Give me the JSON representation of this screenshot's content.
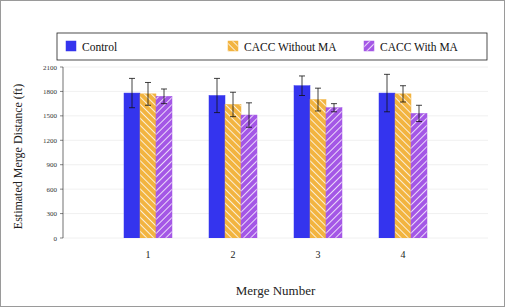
{
  "chart_data": {
    "type": "bar",
    "y_label": "Estimated Merge Distance (ft)",
    "x_label": "Merge Number",
    "categories": [
      "1",
      "2",
      "3",
      "4"
    ],
    "series": [
      {
        "name": "Control",
        "color": "#3434ee",
        "values": [
          1780,
          1750,
          1870,
          1780
        ],
        "errors": [
          180,
          210,
          120,
          230
        ]
      },
      {
        "name": "CACC Without MA",
        "color": "#f2b440",
        "values": [
          1770,
          1640,
          1700,
          1770
        ],
        "errors": [
          140,
          150,
          140,
          100
        ]
      },
      {
        "name": "CACC With MA",
        "color": "#a457e6",
        "values": [
          1740,
          1510,
          1600,
          1530
        ],
        "errors": [
          90,
          150,
          50,
          100
        ]
      }
    ],
    "ylim": [
      0,
      2100
    ],
    "yticks": [
      0,
      300,
      600,
      900,
      1200,
      1500,
      1800,
      2100
    ],
    "grid": true,
    "legend": "top"
  }
}
